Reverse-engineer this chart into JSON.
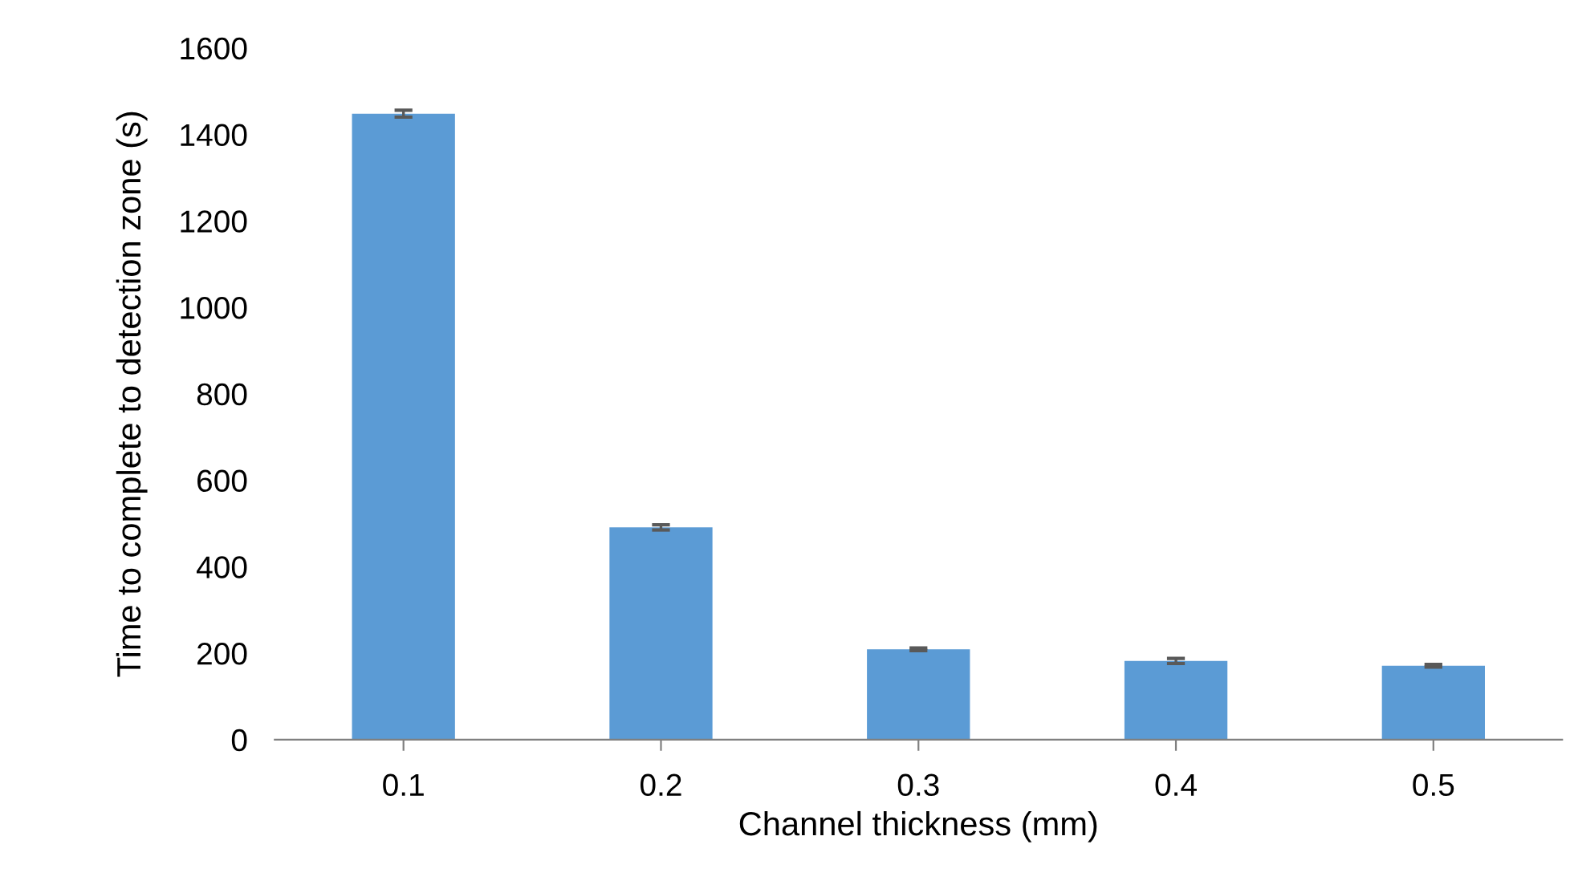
{
  "chart_data": {
    "type": "bar",
    "xlabel": "Channel thickness (mm)",
    "ylabel": "Time to complete to detection zone (s)",
    "categories": [
      "0.1",
      "0.2",
      "0.3",
      "0.4",
      "0.5"
    ],
    "values": [
      1448,
      491,
      209,
      182,
      171
    ],
    "errors": [
      8,
      6,
      3,
      6,
      3
    ],
    "color": "#5b9bd5",
    "ylim": [
      0,
      1600
    ],
    "yticks": [
      0,
      200,
      400,
      600,
      800,
      1000,
      1200,
      1400,
      1600
    ],
    "grid": false,
    "legend": false
  }
}
